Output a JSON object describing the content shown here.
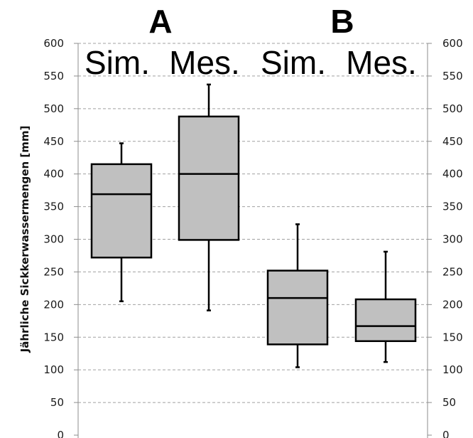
{
  "chart_data": {
    "type": "boxplot",
    "ylabel": "Jährliche Sickkerwassermengen [mm]",
    "ylim": [
      0,
      600
    ],
    "yticks": [
      0,
      50,
      100,
      150,
      200,
      250,
      300,
      350,
      400,
      450,
      500,
      550,
      600
    ],
    "grid": true,
    "right_axis": true,
    "groups": [
      {
        "label": "A"
      },
      {
        "label": "B"
      }
    ],
    "boxes": [
      {
        "label": "Sim.",
        "group": "A",
        "whisker_low": 205,
        "q1": 272,
        "median": 369,
        "q3": 415,
        "whisker_high": 447
      },
      {
        "label": "Mes.",
        "group": "A",
        "whisker_low": 191,
        "q1": 299,
        "median": 400,
        "q3": 488,
        "whisker_high": 537
      },
      {
        "label": "Sim.",
        "group": "B",
        "whisker_low": 104,
        "q1": 139,
        "median": 210,
        "q3": 252,
        "whisker_high": 323
      },
      {
        "label": "Mes.",
        "group": "B",
        "whisker_low": 112,
        "q1": 144,
        "median": 167,
        "q3": 208,
        "whisker_high": 281
      }
    ],
    "colors": {
      "box_fill": "#c0c0c0",
      "box_stroke": "#000000",
      "grid": "#a0a0a0",
      "axis": "#8c8c8c"
    }
  }
}
